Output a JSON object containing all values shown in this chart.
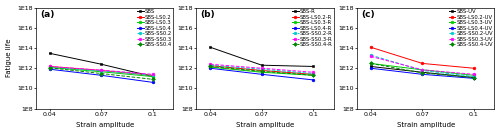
{
  "x": [
    0.04,
    0.07,
    0.1
  ],
  "panels": [
    {
      "label": "(a)",
      "lines": [
        {
          "name": "SBS",
          "color": "#000000",
          "style": "-",
          "marker": "s",
          "y": [
            30000000000000.0,
            2500000000000.0,
            150000000000.0
          ]
        },
        {
          "name": "SBS-LS0.2",
          "color": "#ff0000",
          "style": "-",
          "marker": "o",
          "y": [
            1500000000000.0,
            600000000000.0,
            200000000000.0
          ]
        },
        {
          "name": "SBS-LS0.3",
          "color": "#00cc00",
          "style": "-",
          "marker": "o",
          "y": [
            1200000000000.0,
            450000000000.0,
            150000000000.0
          ]
        },
        {
          "name": "SBS-LS0.4",
          "color": "#0000ff",
          "style": "-",
          "marker": "o",
          "y": [
            800000000000.0,
            200000000000.0,
            40000000000.0
          ]
        },
        {
          "name": "SBS-SS0.2",
          "color": "#00cccc",
          "style": "--",
          "marker": "o",
          "y": [
            1300000000000.0,
            550000000000.0,
            200000000000.0
          ]
        },
        {
          "name": "SBS-SS0.3",
          "color": "#ff00ff",
          "style": "--",
          "marker": "o",
          "y": [
            1500000000000.0,
            650000000000.0,
            250000000000.0
          ]
        },
        {
          "name": "SBS-SS0.4",
          "color": "#008800",
          "style": "--",
          "marker": "D",
          "y": [
            1100000000000.0,
            300000000000.0,
            80000000000.0
          ]
        }
      ]
    },
    {
      "label": "(b)",
      "lines": [
        {
          "name": "SBS-R",
          "color": "#000000",
          "style": "-",
          "marker": "s",
          "y": [
            120000000000000.0,
            2000000000000.0,
            1500000000000.0
          ]
        },
        {
          "name": "SBS-LS0.2-R",
          "color": "#ff0000",
          "style": "-",
          "marker": "o",
          "y": [
            1800000000000.0,
            600000000000.0,
            250000000000.0
          ]
        },
        {
          "name": "SBS-LS0.3-R",
          "color": "#00cc00",
          "style": "-",
          "marker": "o",
          "y": [
            1300000000000.0,
            400000000000.0,
            200000000000.0
          ]
        },
        {
          "name": "SBS-LS0.4-R",
          "color": "#0000ff",
          "style": "-",
          "marker": "o",
          "y": [
            1000000000000.0,
            250000000000.0,
            70000000000.0
          ]
        },
        {
          "name": "SBS-SS0.2-R",
          "color": "#00cccc",
          "style": "--",
          "marker": "o",
          "y": [
            2000000000000.0,
            800000000000.0,
            300000000000.0
          ]
        },
        {
          "name": "SBS-SS0.3-R",
          "color": "#ff00ff",
          "style": "--",
          "marker": "o",
          "y": [
            2500000000000.0,
            1000000000000.0,
            400000000000.0
          ]
        },
        {
          "name": "SBS-SS0.4-R",
          "color": "#008800",
          "style": "--",
          "marker": "D",
          "y": [
            1500000000000.0,
            500000000000.0,
            200000000000.0
          ]
        }
      ]
    },
    {
      "label": "(c)",
      "lines": [
        {
          "name": "SBS-UV",
          "color": "#000000",
          "style": "-",
          "marker": "s",
          "y": [
            1500000000000.0,
            400000000000.0,
            120000000000.0
          ]
        },
        {
          "name": "SBS-LS0.2-UV",
          "color": "#ff0000",
          "style": "-",
          "marker": "o",
          "y": [
            120000000000000.0,
            3000000000000.0,
            1000000000000.0
          ]
        },
        {
          "name": "SBS-LS0.3-UV",
          "color": "#00cc00",
          "style": "-",
          "marker": "o",
          "y": [
            3000000000000.0,
            700000000000.0,
            200000000000.0
          ]
        },
        {
          "name": "SBS-LS0.4-UV",
          "color": "#0000ff",
          "style": "-",
          "marker": "o",
          "y": [
            1000000000000.0,
            250000000000.0,
            100000000000.0
          ]
        },
        {
          "name": "SBS-SS0.2-UV",
          "color": "#00cccc",
          "style": "--",
          "marker": "o",
          "y": [
            20000000000000.0,
            600000000000.0,
            150000000000.0
          ]
        },
        {
          "name": "SBS-SS0.3-UV",
          "color": "#ff00ff",
          "style": "--",
          "marker": "o",
          "y": [
            15000000000000.0,
            700000000000.0,
            250000000000.0
          ]
        },
        {
          "name": "SBS-SS0.4-UV",
          "color": "#008800",
          "style": "--",
          "marker": "D",
          "y": [
            3000000000000.0,
            350000000000.0,
            120000000000.0
          ]
        }
      ]
    }
  ],
  "xlabel": "Strain amplitude",
  "ylabel": "Fatigue life",
  "ylim": [
    100000000.0,
    1e+18
  ],
  "yticks": [
    100000000.0,
    10000000000.0,
    1000000000000.0,
    100000000000000.0,
    1e+16,
    1e+18
  ],
  "ytick_labels": [
    "1E8",
    "1E10",
    "1E12",
    "1E14",
    "1E16",
    "1E18"
  ],
  "xticks": [
    0.04,
    0.07,
    0.1
  ],
  "xtick_labels": [
    "0.04",
    "0.07",
    "0.1"
  ],
  "background_color": "#ffffff",
  "legend_fontsize": 3.8,
  "axis_label_fontsize": 5.0,
  "tick_fontsize": 4.5,
  "panel_label_fontsize": 6.5,
  "marker_size": 2.0,
  "line_width": 0.7
}
